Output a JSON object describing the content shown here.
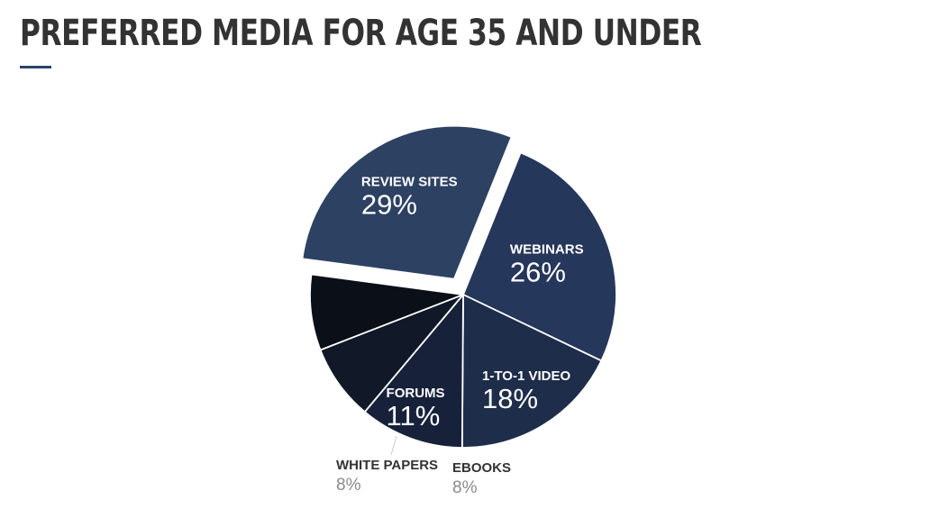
{
  "title": "PREFERRED MEDIA FOR AGE 35 AND UNDER",
  "colors": {
    "title": "#333333",
    "accent": "#2e4266",
    "outside_label_name": "#333333",
    "outside_label_value": "#8a8a8a"
  },
  "chart_data": {
    "type": "pie",
    "title": "PREFERRED MEDIA FOR AGE 35 AND UNDER",
    "slices": [
      {
        "label": "WEBINARS",
        "value": 26,
        "value_label": "26%",
        "color": "#25375a",
        "exploded": false,
        "label_inside": true
      },
      {
        "label": "1-TO-1 VIDEO",
        "value": 18,
        "value_label": "18%",
        "color": "#1e2d4a",
        "exploded": false,
        "label_inside": true
      },
      {
        "label": "FORUMS",
        "value": 11,
        "value_label": "11%",
        "color": "#17223a",
        "exploded": false,
        "label_inside": true
      },
      {
        "label": "EBOOKS",
        "value": 8,
        "value_label": "8%",
        "color": "#111827",
        "exploded": false,
        "label_inside": false
      },
      {
        "label": "WHITE PAPERS",
        "value": 8,
        "value_label": "8%",
        "color": "#0b0f17",
        "exploded": false,
        "label_inside": false
      },
      {
        "label": "REVIEW SITES",
        "value": 29,
        "value_label": "29%",
        "color": "#2d4163",
        "exploded": true,
        "label_inside": true
      }
    ]
  }
}
